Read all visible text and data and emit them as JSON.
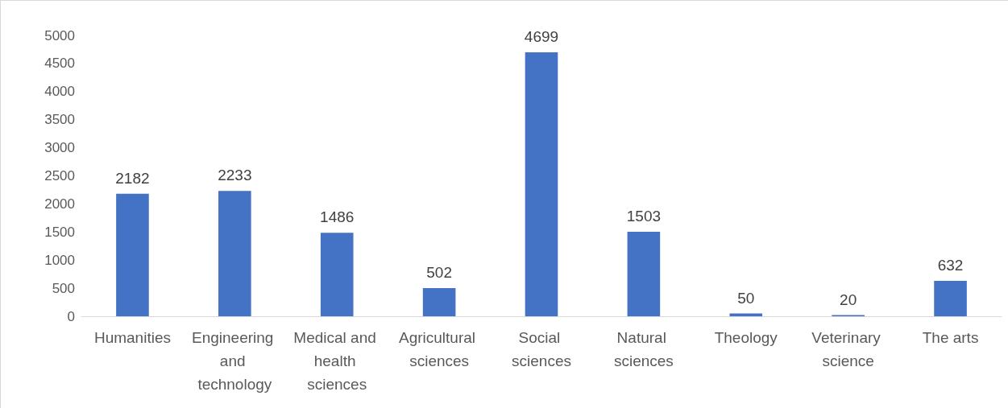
{
  "chart_data": {
    "type": "bar",
    "categories": [
      "Humanities",
      "Engineering and technology",
      "Medical and health sciences",
      "Agricultural sciences",
      "Social sciences",
      "Natural sciences",
      "Theology",
      "Veterinary science",
      "The arts"
    ],
    "values": [
      2182,
      2233,
      1486,
      502,
      4699,
      1503,
      50,
      20,
      632
    ],
    "color": "#4472c4",
    "ylim": [
      0,
      5000
    ],
    "yticks": [
      0,
      500,
      1000,
      1500,
      2000,
      2500,
      3000,
      3500,
      4000,
      4500,
      5000
    ],
    "grid": false,
    "data_labels": true
  }
}
